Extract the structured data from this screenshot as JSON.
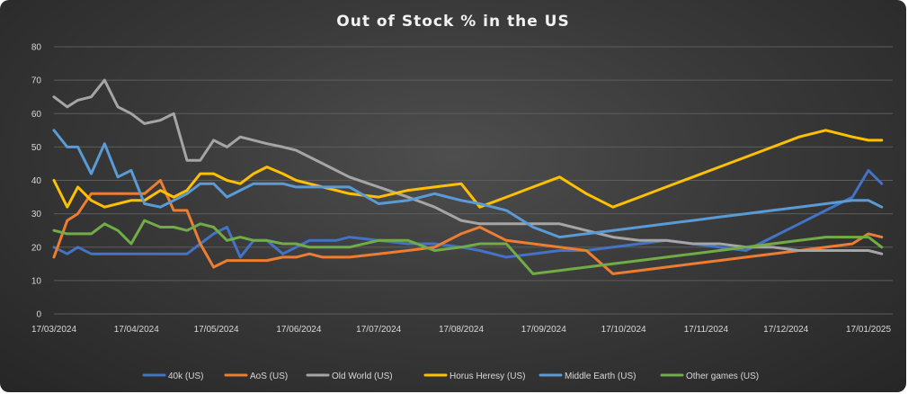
{
  "chart_data": {
    "type": "line",
    "title": "Out of Stock % in the US",
    "xlabel": "",
    "ylabel": "",
    "ylim": [
      0,
      80
    ],
    "yticks": [
      "0",
      "10",
      "20",
      "30",
      "40",
      "50",
      "60",
      "70",
      "80"
    ],
    "xlim_days": [
      0,
      306
    ],
    "xticks": [
      {
        "label": "17/03/2024",
        "day": 0
      },
      {
        "label": "17/04/2024",
        "day": 31
      },
      {
        "label": "17/05/2024",
        "day": 61
      },
      {
        "label": "17/06/2024",
        "day": 92
      },
      {
        "label": "17/07/2024",
        "day": 122
      },
      {
        "label": "17/08/2024",
        "day": 153
      },
      {
        "label": "17/09/2024",
        "day": 184
      },
      {
        "label": "17/10/2024",
        "day": 214
      },
      {
        "label": "17/11/2024",
        "day": 245
      },
      {
        "label": "17/12/2024",
        "day": 275
      },
      {
        "label": "17/01/2025",
        "day": 306
      }
    ],
    "grid": true,
    "legend_position": "bottom",
    "series": [
      {
        "name": "40k (US)",
        "color": "#4472c4",
        "x": [
          0,
          5,
          9,
          14,
          19,
          24,
          29,
          34,
          40,
          45,
          50,
          55,
          60,
          65,
          70,
          75,
          80,
          86,
          91,
          96,
          101,
          106,
          111,
          122,
          133,
          143,
          153,
          160,
          170,
          180,
          190,
          200,
          210,
          220,
          230,
          240,
          250,
          260,
          270,
          280,
          290,
          300,
          306,
          311
        ],
        "y": [
          20,
          18,
          20,
          18,
          18,
          18,
          18,
          18,
          18,
          18,
          18,
          21,
          24,
          26,
          17,
          22,
          22,
          18,
          20,
          22,
          22,
          22,
          23,
          22,
          21,
          21,
          20,
          19,
          17,
          18,
          19,
          19,
          20,
          21,
          22,
          21,
          20,
          19,
          23,
          27,
          31,
          35,
          43,
          39
        ]
      },
      {
        "name": "AoS (US)",
        "color": "#ed7d31",
        "x": [
          0,
          5,
          9,
          14,
          19,
          24,
          29,
          34,
          40,
          45,
          50,
          55,
          60,
          65,
          70,
          75,
          80,
          86,
          91,
          96,
          101,
          106,
          111,
          122,
          133,
          143,
          153,
          160,
          170,
          180,
          190,
          200,
          210,
          220,
          230,
          240,
          250,
          260,
          270,
          280,
          290,
          300,
          306,
          311
        ],
        "y": [
          17,
          28,
          30,
          36,
          36,
          36,
          36,
          36,
          40,
          31,
          31,
          21,
          14,
          16,
          16,
          16,
          16,
          17,
          17,
          18,
          17,
          17,
          17,
          18,
          19,
          20,
          24,
          26,
          22,
          21,
          20,
          19,
          12,
          13,
          14,
          15,
          16,
          17,
          18,
          19,
          20,
          21,
          24,
          23
        ]
      },
      {
        "name": "Old World (US)",
        "color": "#a5a5a5",
        "x": [
          0,
          5,
          9,
          14,
          19,
          24,
          29,
          34,
          40,
          45,
          50,
          55,
          60,
          65,
          70,
          75,
          80,
          86,
          91,
          96,
          101,
          106,
          111,
          122,
          133,
          143,
          153,
          160,
          170,
          180,
          190,
          200,
          210,
          220,
          230,
          240,
          250,
          260,
          270,
          280,
          290,
          300,
          306,
          311
        ],
        "y": [
          65,
          62,
          64,
          65,
          70,
          62,
          60,
          57,
          58,
          60,
          46,
          46,
          52,
          50,
          53,
          52,
          51,
          50,
          49,
          47,
          45,
          43,
          41,
          38,
          35,
          32,
          28,
          27,
          27,
          27,
          27,
          25,
          23,
          22,
          22,
          21,
          21,
          20,
          20,
          19,
          19,
          19,
          19,
          18
        ]
      },
      {
        "name": "Horus Heresy (US)",
        "color": "#ffc000",
        "x": [
          0,
          5,
          9,
          14,
          19,
          24,
          29,
          34,
          40,
          45,
          50,
          55,
          60,
          65,
          70,
          75,
          80,
          86,
          91,
          96,
          101,
          106,
          111,
          122,
          133,
          143,
          153,
          160,
          170,
          180,
          190,
          200,
          210,
          220,
          230,
          240,
          250,
          260,
          270,
          280,
          290,
          300,
          306,
          311
        ],
        "y": [
          40,
          32,
          38,
          34,
          32,
          33,
          34,
          34,
          37,
          35,
          37,
          42,
          42,
          40,
          39,
          42,
          44,
          42,
          40,
          39,
          38,
          37,
          36,
          35,
          37,
          38,
          39,
          32,
          35,
          38,
          41,
          36,
          32,
          35,
          38,
          41,
          44,
          47,
          50,
          53,
          55,
          53,
          52,
          52
        ]
      },
      {
        "name": "Middle Earth (US)",
        "color": "#5b9bd5",
        "x": [
          0,
          5,
          9,
          14,
          19,
          24,
          29,
          34,
          40,
          45,
          50,
          55,
          60,
          65,
          70,
          75,
          80,
          86,
          91,
          96,
          101,
          106,
          111,
          122,
          133,
          143,
          153,
          160,
          170,
          180,
          190,
          200,
          210,
          220,
          230,
          240,
          250,
          260,
          270,
          280,
          290,
          300,
          306,
          311
        ],
        "y": [
          55,
          50,
          50,
          42,
          51,
          41,
          43,
          33,
          32,
          34,
          36,
          39,
          39,
          35,
          37,
          39,
          39,
          39,
          38,
          38,
          38,
          38,
          38,
          33,
          34,
          36,
          34,
          33,
          31,
          26,
          23,
          24,
          25,
          26,
          27,
          28,
          29,
          30,
          31,
          32,
          33,
          34,
          34,
          32
        ]
      },
      {
        "name": "Other games (US)",
        "color": "#70ad47",
        "x": [
          0,
          5,
          9,
          14,
          19,
          24,
          29,
          34,
          40,
          45,
          50,
          55,
          60,
          65,
          70,
          75,
          80,
          86,
          91,
          96,
          101,
          106,
          111,
          122,
          133,
          143,
          153,
          160,
          170,
          180,
          190,
          200,
          210,
          220,
          230,
          240,
          250,
          260,
          270,
          280,
          290,
          300,
          306,
          311
        ],
        "y": [
          25,
          24,
          24,
          24,
          27,
          25,
          21,
          28,
          26,
          26,
          25,
          27,
          26,
          22,
          23,
          22,
          22,
          21,
          21,
          20,
          20,
          20,
          20,
          22,
          22,
          19,
          20,
          21,
          21,
          12,
          13,
          14,
          15,
          16,
          17,
          18,
          19,
          20,
          21,
          22,
          23,
          23,
          23,
          20
        ]
      }
    ]
  }
}
